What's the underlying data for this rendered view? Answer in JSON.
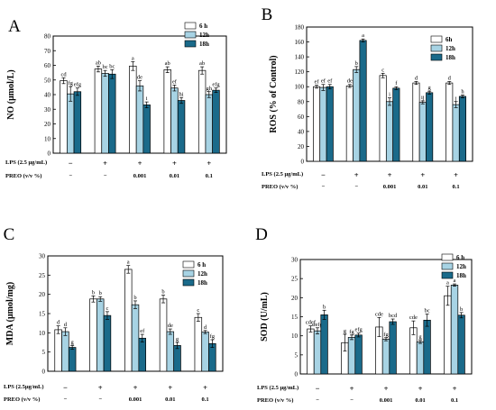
{
  "colors": {
    "h6": "#ffffff",
    "h12": "#a7d3e4",
    "h18": "#1a6a8a",
    "stroke": "#000000"
  },
  "row_labels": {
    "lps": "LPS (2.5 μg/mL)",
    "lps_c": "LPS (2.5μg/mL)",
    "preo": "PREO (v/v %)"
  },
  "chart_data": [
    {
      "panel": "A",
      "type": "bar",
      "ylabel": "NO (μmol/L)",
      "ylim": [
        0,
        80
      ],
      "yticks": [
        0,
        10,
        20,
        30,
        40,
        50,
        60,
        70,
        80
      ],
      "legend": [
        "6 h",
        "12h",
        "18h"
      ],
      "lps": [
        "−",
        "+",
        "+",
        "+",
        "+"
      ],
      "preo": [
        "−",
        "−",
        "0.001",
        "0.01",
        "0.1"
      ],
      "series": [
        {
          "name": "6 h",
          "values": [
            49.5,
            57.5,
            59.5,
            57,
            56.5
          ],
          "errors": [
            2,
            2,
            3,
            2,
            2.5
          ],
          "letters": [
            "cd",
            "ab",
            "a",
            "ab",
            "ab"
          ]
        },
        {
          "name": "12h",
          "values": [
            40.5,
            54.5,
            46,
            44.5,
            40
          ],
          "errors": [
            5,
            2,
            3.5,
            2,
            2
          ],
          "letters": [
            "fg",
            "bc",
            "de",
            "ef",
            "gh"
          ]
        },
        {
          "name": "18h",
          "values": [
            42,
            54,
            33,
            36,
            43
          ],
          "errors": [
            2.5,
            3,
            2,
            2,
            1.5
          ],
          "letters": [
            "efg",
            "bc",
            "i",
            "hi",
            "efg"
          ]
        }
      ]
    },
    {
      "panel": "B",
      "type": "bar",
      "ylabel": "ROS (% of Control)",
      "ylim": [
        0,
        180
      ],
      "yticks": [
        0,
        20,
        40,
        60,
        80,
        100,
        120,
        140,
        160,
        180
      ],
      "legend": [
        "6h",
        "12h",
        "18h"
      ],
      "lps": [
        "−",
        "+",
        "+",
        "+",
        "+"
      ],
      "preo": [
        "−",
        "−",
        "0.001",
        "0.01",
        "0.1"
      ],
      "series": [
        {
          "name": "6h",
          "values": [
            100,
            101,
            115,
            105,
            105
          ],
          "errors": [
            2,
            2,
            3,
            2,
            2
          ],
          "letters": [
            "ef",
            "de",
            "c",
            "d",
            "d"
          ]
        },
        {
          "name": "12h",
          "values": [
            99,
            123,
            80,
            79,
            76
          ],
          "errors": [
            4,
            4,
            5,
            2,
            4
          ],
          "letters": [
            "ef",
            "b",
            "i",
            "ij",
            "j"
          ]
        },
        {
          "name": "18h",
          "values": [
            100,
            162,
            98,
            92,
            87
          ],
          "errors": [
            3,
            2,
            2,
            2,
            2
          ],
          "letters": [
            "ef",
            "a",
            "f",
            "g",
            "h"
          ]
        }
      ]
    },
    {
      "panel": "C",
      "type": "bar",
      "ylabel": "MDA (μmol/mg)",
      "ylim": [
        0,
        30
      ],
      "yticks": [
        0,
        5,
        10,
        15,
        20,
        25,
        30
      ],
      "legend": [
        "6 h",
        "12h",
        "18h"
      ],
      "lps": [
        "−",
        "+",
        "+",
        "+",
        "+"
      ],
      "preo": [
        "−",
        "−",
        "0.001",
        "0.01",
        "0.1"
      ],
      "series": [
        {
          "name": "6 h",
          "values": [
            10.8,
            18.8,
            26.5,
            18.8,
            14
          ],
          "errors": [
            1,
            0.8,
            1,
            1,
            1
          ],
          "letters": [
            "d",
            "b",
            "a",
            "b",
            "c"
          ]
        },
        {
          "name": "12h",
          "values": [
            10.3,
            18.8,
            17.3,
            10.3,
            10.2
          ],
          "errors": [
            1,
            0.6,
            1,
            0.7,
            0.4
          ],
          "letters": [
            "d",
            "b",
            "b",
            "de",
            "d"
          ]
        },
        {
          "name": "18h",
          "values": [
            6.2,
            14.5,
            8.6,
            6.7,
            7.2
          ],
          "errors": [
            0.5,
            1,
            1,
            0.8,
            1
          ],
          "letters": [
            "g",
            "c",
            "ef",
            "g",
            "fg"
          ]
        }
      ]
    },
    {
      "panel": "D",
      "type": "bar",
      "ylabel": "SOD (U/mL)",
      "ylim": [
        0,
        30
      ],
      "yticks": [
        0,
        5,
        10,
        15,
        20,
        25,
        30
      ],
      "legend": [
        "6 h",
        "12h",
        "18h"
      ],
      "lps": [
        "−",
        "+",
        "+",
        "+",
        "+"
      ],
      "preo": [
        "−",
        "−",
        "0.001",
        "0.01",
        "0.1"
      ],
      "series": [
        {
          "name": "6 h",
          "values": [
            11.8,
            8.2,
            12.3,
            12.1,
            20.5
          ],
          "errors": [
            0.8,
            2.2,
            2.5,
            1.8,
            2.5
          ],
          "letters": [
            "cdef",
            "g",
            "cde",
            "cde",
            "a"
          ]
        },
        {
          "name": "12h",
          "values": [
            11.3,
            9.6,
            9.1,
            8.4,
            23.3
          ],
          "errors": [
            0.8,
            0.6,
            0.4,
            0.4,
            0.3
          ],
          "letters": [
            "defg",
            "fg",
            "fg",
            "g",
            "a"
          ]
        },
        {
          "name": "18h",
          "values": [
            15.5,
            10.2,
            13.7,
            14.1,
            15.4
          ],
          "errors": [
            1.2,
            0.5,
            0.7,
            1.6,
            0.7
          ],
          "letters": [
            "b",
            "efg",
            "bcd",
            "bc",
            "b"
          ]
        }
      ]
    }
  ]
}
